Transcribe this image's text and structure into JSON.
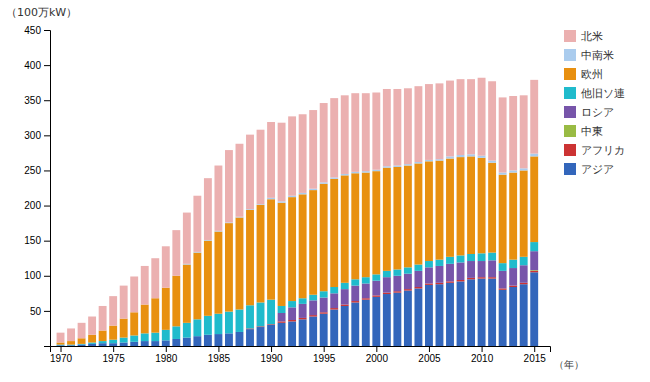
{
  "chart_data": {
    "type": "bar",
    "stacked": true,
    "y_label": "（100万kW）",
    "annotations": [
      "（年）"
    ],
    "x": [
      1970,
      1971,
      1972,
      1973,
      1974,
      1975,
      1976,
      1977,
      1978,
      1979,
      1980,
      1981,
      1982,
      1983,
      1984,
      1985,
      1986,
      1987,
      1988,
      1989,
      1990,
      1991,
      1992,
      1993,
      1994,
      1995,
      1996,
      1997,
      1998,
      1999,
      2000,
      2001,
      2002,
      2003,
      2004,
      2005,
      2006,
      2007,
      2008,
      2009,
      2010,
      2011,
      2012,
      2013,
      2014,
      2015
    ],
    "series": [
      {
        "name": "アジア",
        "color": "#3366BB",
        "values": [
          1,
          1,
          2,
          3,
          4,
          4,
          5,
          6,
          7,
          7,
          8,
          10,
          12,
          14,
          16,
          17,
          18,
          20,
          24,
          27,
          30,
          33,
          35,
          38,
          42,
          46,
          52,
          57,
          62,
          66,
          70,
          74,
          76,
          79,
          82,
          87,
          88,
          90,
          92,
          95,
          96,
          96,
          80,
          84,
          88,
          105
        ]
      },
      {
        "name": "アフリカ",
        "color": "#CC3333",
        "values": [
          0,
          0,
          0,
          0,
          0,
          0,
          0,
          0,
          0,
          0,
          0,
          0,
          0,
          0,
          0,
          0,
          0,
          0,
          1,
          1,
          1,
          2,
          2,
          2,
          2,
          2,
          2,
          2,
          2,
          2,
          2,
          2,
          2,
          2,
          2,
          2,
          2,
          2,
          2,
          2,
          2,
          2,
          2,
          2,
          2,
          2
        ]
      },
      {
        "name": "中東",
        "color": "#99BB44",
        "values": [
          0,
          0,
          0,
          0,
          0,
          0,
          0,
          0,
          0,
          0,
          0,
          0,
          0,
          0,
          0,
          0,
          0,
          0,
          0,
          0,
          0,
          0,
          0,
          0,
          0,
          0,
          0,
          0,
          0,
          0,
          0,
          0,
          0,
          0,
          0,
          0,
          0,
          0,
          0,
          0,
          0,
          0,
          0,
          0,
          0,
          1
        ]
      },
      {
        "name": "ロシア",
        "color": "#7755AA",
        "values": [
          0,
          0,
          0,
          0,
          0,
          0,
          0,
          0,
          0,
          0,
          0,
          0,
          0,
          0,
          0,
          0,
          0,
          0,
          0,
          0,
          0,
          12,
          18,
          20,
          21,
          21,
          21,
          22,
          22,
          21,
          21,
          22,
          22,
          22,
          23,
          23,
          24,
          25,
          25,
          24,
          23,
          24,
          25,
          25,
          25,
          27
        ]
      },
      {
        "name": "他旧ソ連",
        "color": "#20BBCC",
        "values": [
          1,
          1,
          1,
          2,
          3,
          5,
          7,
          9,
          11,
          12,
          15,
          18,
          21,
          24,
          27,
          29,
          31,
          32,
          33,
          34,
          35,
          10,
          9,
          8,
          8,
          9,
          9,
          9,
          9,
          9,
          9,
          9,
          9,
          9,
          9,
          9,
          9,
          10,
          10,
          10,
          11,
          11,
          11,
          12,
          12,
          13
        ]
      },
      {
        "name": "欧州",
        "color": "#E89010",
        "values": [
          3,
          5,
          8,
          11,
          15,
          20,
          27,
          33,
          41,
          49,
          60,
          72,
          83,
          95,
          107,
          117,
          126,
          131,
          136,
          139,
          143,
          147,
          148,
          148,
          149,
          153,
          154,
          153,
          151,
          149,
          147,
          147,
          146,
          145,
          144,
          142,
          141,
          140,
          140,
          139,
          136,
          128,
          126,
          124,
          123,
          122
        ]
      },
      {
        "name": "中南米",
        "color": "#AACCEE",
        "values": [
          0,
          0,
          0,
          0,
          0,
          0,
          0,
          0,
          0,
          0,
          0,
          0,
          1,
          1,
          1,
          1,
          1,
          1,
          1,
          1,
          2,
          2,
          2,
          2,
          2,
          2,
          2,
          2,
          2,
          2,
          2,
          2,
          2,
          2,
          2,
          2,
          2,
          3,
          3,
          3,
          3,
          3,
          3,
          3,
          3,
          4
        ]
      },
      {
        "name": "北米",
        "color": "#EBB0B0",
        "values": [
          14,
          18,
          22,
          26,
          35,
          42,
          47,
          51,
          55,
          57,
          59,
          65,
          73,
          80,
          88,
          93,
          103,
          104,
          106,
          106,
          108,
          112,
          113,
          112,
          112,
          113,
          113,
          112,
          112,
          111,
          110,
          110,
          109,
          108,
          108,
          108,
          108,
          108,
          108,
          107,
          111,
          113,
          107,
          106,
          104,
          105
        ]
      }
    ],
    "xlim": [
      1969.0,
      2016.5
    ],
    "xticks": [
      1970,
      1975,
      1980,
      1985,
      1990,
      1995,
      2000,
      2005,
      2010,
      2015
    ],
    "ylim": [
      0,
      450
    ],
    "yticks": [
      50,
      100,
      150,
      200,
      250,
      300,
      350,
      400,
      450
    ],
    "grid": false,
    "legend": "right"
  }
}
